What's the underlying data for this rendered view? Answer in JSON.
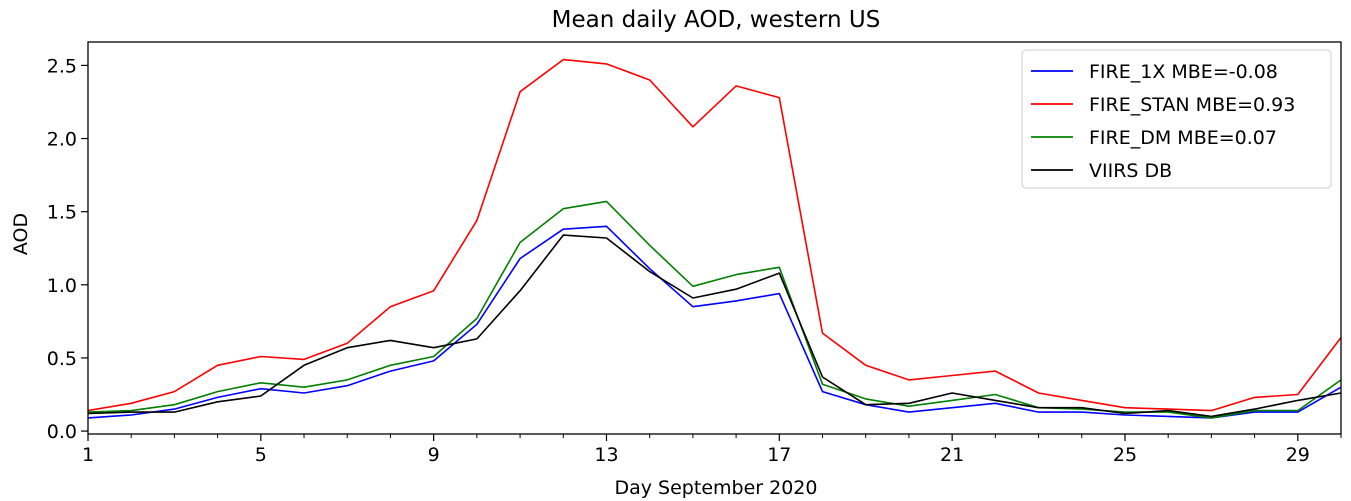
{
  "chart_data": {
    "type": "line",
    "title": "Mean daily AOD, western US",
    "xlabel": "Day September 2020",
    "ylabel": "AOD",
    "xlim": [
      1,
      30
    ],
    "ylim": [
      -0.02,
      2.66
    ],
    "xticks": [
      1,
      5,
      9,
      13,
      17,
      21,
      25,
      29
    ],
    "xticks_minor": [
      2,
      3,
      4,
      6,
      7,
      8,
      10,
      11,
      12,
      14,
      15,
      16,
      18,
      19,
      20,
      22,
      23,
      24,
      26,
      27,
      28,
      30
    ],
    "yticks": [
      "0.0",
      "0.5",
      "1.0",
      "1.5",
      "2.0",
      "2.5"
    ],
    "grid": false,
    "legend_position": "top-right",
    "x": [
      1,
      2,
      3,
      4,
      5,
      6,
      7,
      8,
      9,
      10,
      11,
      12,
      13,
      14,
      15,
      16,
      17,
      18,
      19,
      20,
      21,
      22,
      23,
      24,
      25,
      26,
      27,
      28,
      29,
      30
    ],
    "series": [
      {
        "name": "FIRE_1X MBE=-0.08",
        "color": "#0000ff",
        "values": [
          0.09,
          0.11,
          0.15,
          0.23,
          0.29,
          0.26,
          0.31,
          0.41,
          0.48,
          0.73,
          1.18,
          1.38,
          1.4,
          1.11,
          0.85,
          0.89,
          0.94,
          0.27,
          0.18,
          0.13,
          0.16,
          0.19,
          0.13,
          0.13,
          0.11,
          0.1,
          0.09,
          0.13,
          0.13,
          0.3
        ]
      },
      {
        "name": "FIRE_STAN MBE=0.93",
        "color": "#ff0000",
        "values": [
          0.14,
          0.19,
          0.27,
          0.45,
          0.51,
          0.49,
          0.6,
          0.85,
          0.96,
          1.44,
          2.32,
          2.54,
          2.51,
          2.4,
          2.08,
          2.36,
          2.28,
          0.67,
          0.45,
          0.35,
          0.38,
          0.41,
          0.26,
          0.21,
          0.16,
          0.15,
          0.14,
          0.23,
          0.25,
          0.64
        ]
      },
      {
        "name": "FIRE_DM MBE=0.07",
        "color": "#008000",
        "values": [
          0.13,
          0.14,
          0.18,
          0.27,
          0.33,
          0.3,
          0.35,
          0.45,
          0.51,
          0.77,
          1.29,
          1.52,
          1.57,
          1.27,
          0.99,
          1.07,
          1.12,
          0.32,
          0.22,
          0.17,
          0.21,
          0.25,
          0.16,
          0.15,
          0.13,
          0.13,
          0.09,
          0.14,
          0.14,
          0.35
        ]
      },
      {
        "name": "VIIRS DB",
        "color": "#000000",
        "values": [
          0.12,
          0.13,
          0.13,
          0.2,
          0.24,
          0.45,
          0.57,
          0.62,
          0.57,
          0.63,
          0.96,
          1.34,
          1.32,
          1.09,
          0.91,
          0.97,
          1.08,
          0.37,
          0.18,
          0.19,
          0.26,
          0.21,
          0.16,
          0.16,
          0.12,
          0.14,
          0.1,
          0.15,
          0.21,
          0.26
        ]
      }
    ]
  }
}
